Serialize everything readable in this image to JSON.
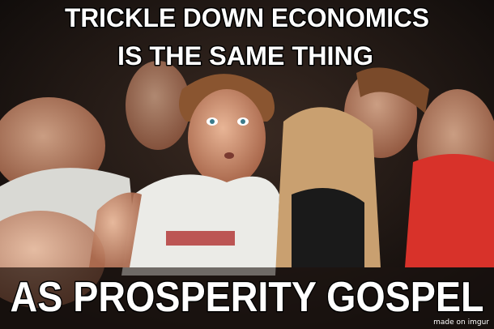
{
  "meme": {
    "top_text": [
      "TRICKLE DOWN ECONOMICS",
      "IS THE SAME THING"
    ],
    "bottom_text": "AS PROSPERITY GOSPEL",
    "watermark": "made on imgur"
  }
}
